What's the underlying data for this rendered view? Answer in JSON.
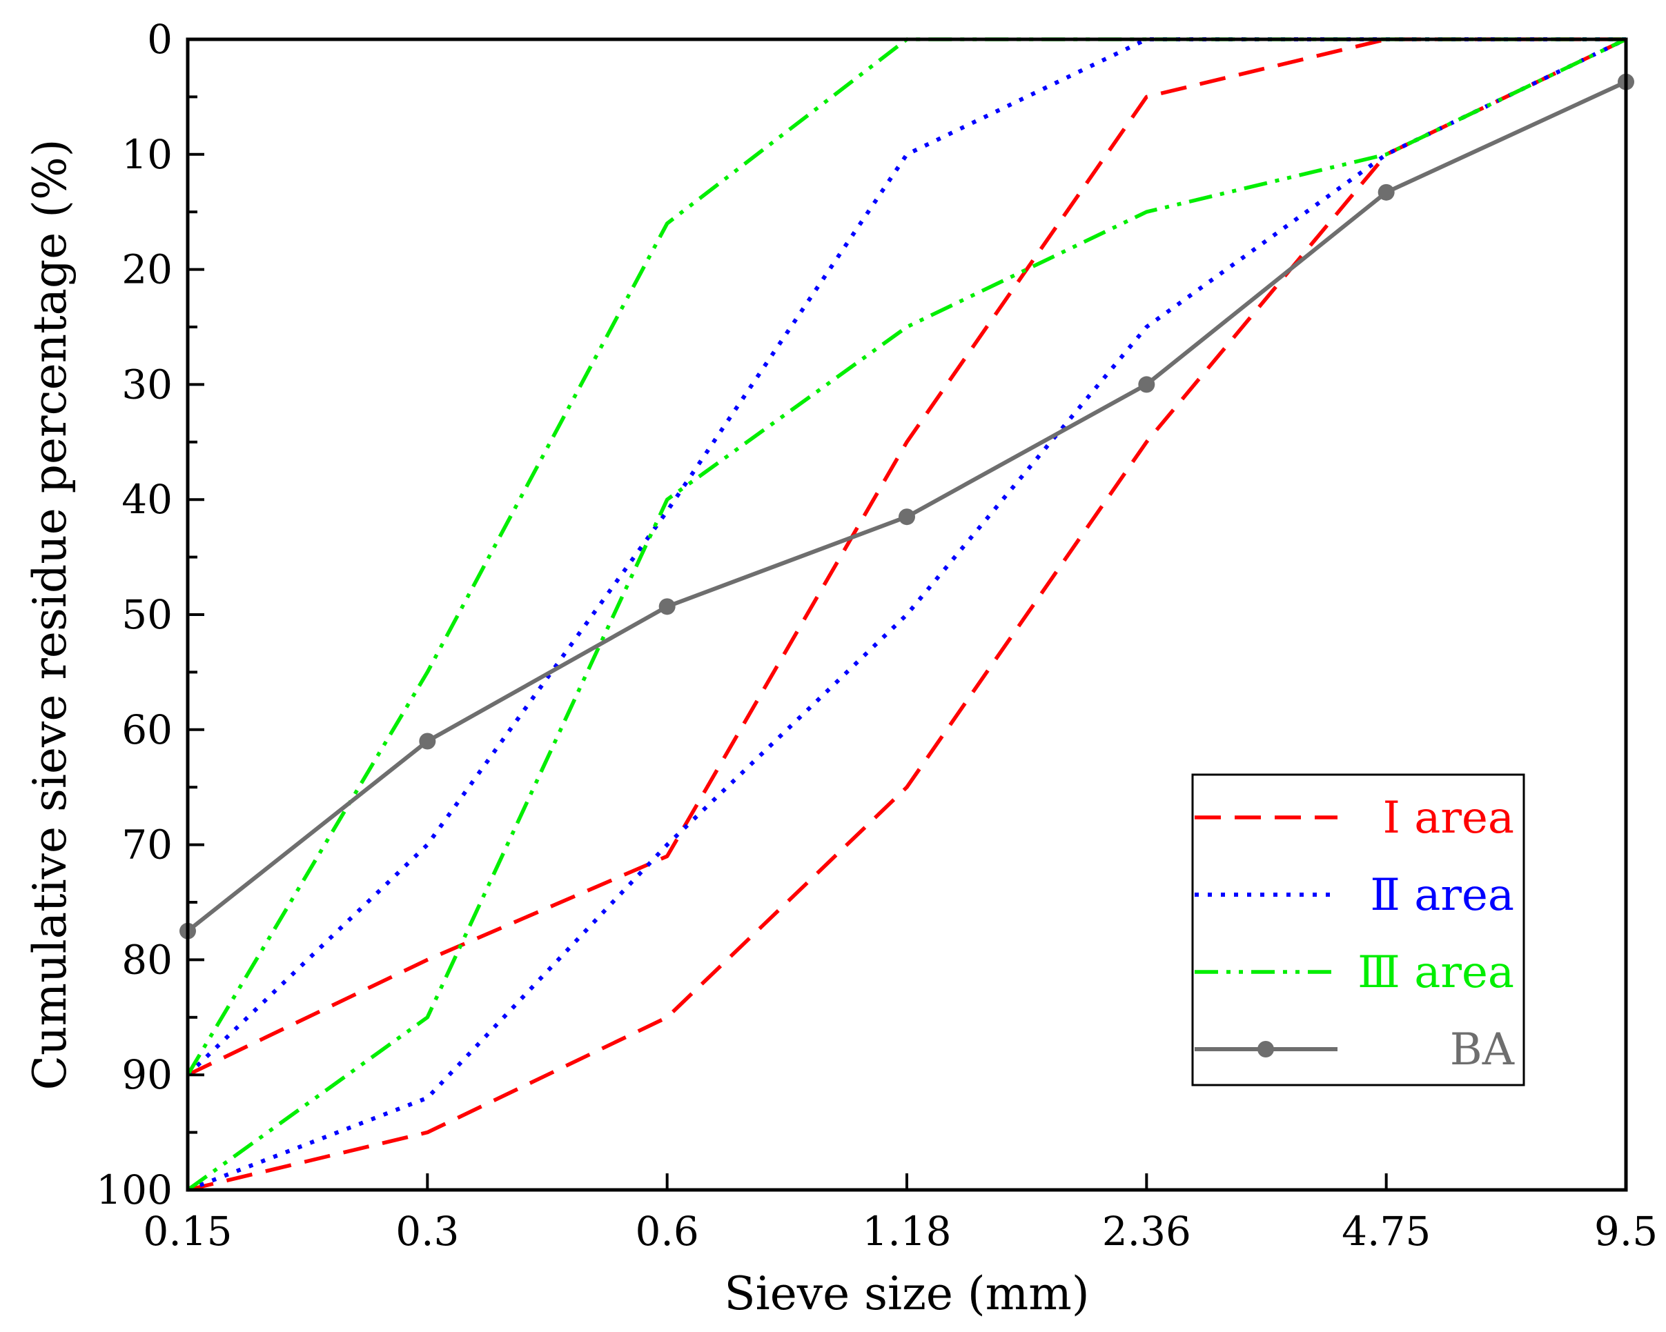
{
  "chart_data": {
    "type": "line",
    "title": "",
    "xlabel": "Sieve size (mm)",
    "ylabel": "Cumulative sieve residue percentage (%)",
    "categories": [
      "0.15",
      "0.3",
      "0.6",
      "1.18",
      "2.36",
      "4.75",
      "9.5"
    ],
    "ylim": [
      0,
      100
    ],
    "y_inverted": true,
    "yticks": [
      "0",
      "10",
      "20",
      "30",
      "40",
      "50",
      "60",
      "70",
      "80",
      "90",
      "100"
    ],
    "grid": false,
    "legend_position": "bottom-right",
    "legend": [
      {
        "label": "Ⅰ area",
        "color": "#ff0000",
        "style": "dashed"
      },
      {
        "label": "Ⅱ area",
        "color": "#0000ff",
        "style": "dotted"
      },
      {
        "label": "Ⅲ area",
        "color": "#00ee00",
        "style": "dash-dot-dot"
      },
      {
        "label": "BA",
        "color": "#6e6e6e",
        "style": "solid-marker"
      }
    ],
    "series": [
      {
        "name": "Ⅰ area upper",
        "group": 0,
        "values": [
          90,
          80,
          71,
          35,
          5,
          0,
          0
        ]
      },
      {
        "name": "Ⅰ area lower",
        "group": 0,
        "values": [
          100,
          95,
          85,
          65,
          35,
          10,
          0
        ]
      },
      {
        "name": "Ⅱ area upper",
        "group": 1,
        "values": [
          90,
          70,
          41,
          10,
          0,
          0,
          0
        ]
      },
      {
        "name": "Ⅱ area lower",
        "group": 1,
        "values": [
          100,
          92,
          70,
          50,
          25,
          10,
          0
        ]
      },
      {
        "name": "Ⅲ area upper",
        "group": 2,
        "values": [
          90,
          55,
          16,
          0,
          0,
          0,
          0
        ]
      },
      {
        "name": "Ⅲ area lower",
        "group": 2,
        "values": [
          100,
          85,
          40,
          25,
          15,
          10,
          0
        ]
      },
      {
        "name": "BA",
        "group": 3,
        "values": [
          77.5,
          61,
          49.3,
          41.5,
          30,
          13.3,
          3.7
        ]
      }
    ]
  }
}
